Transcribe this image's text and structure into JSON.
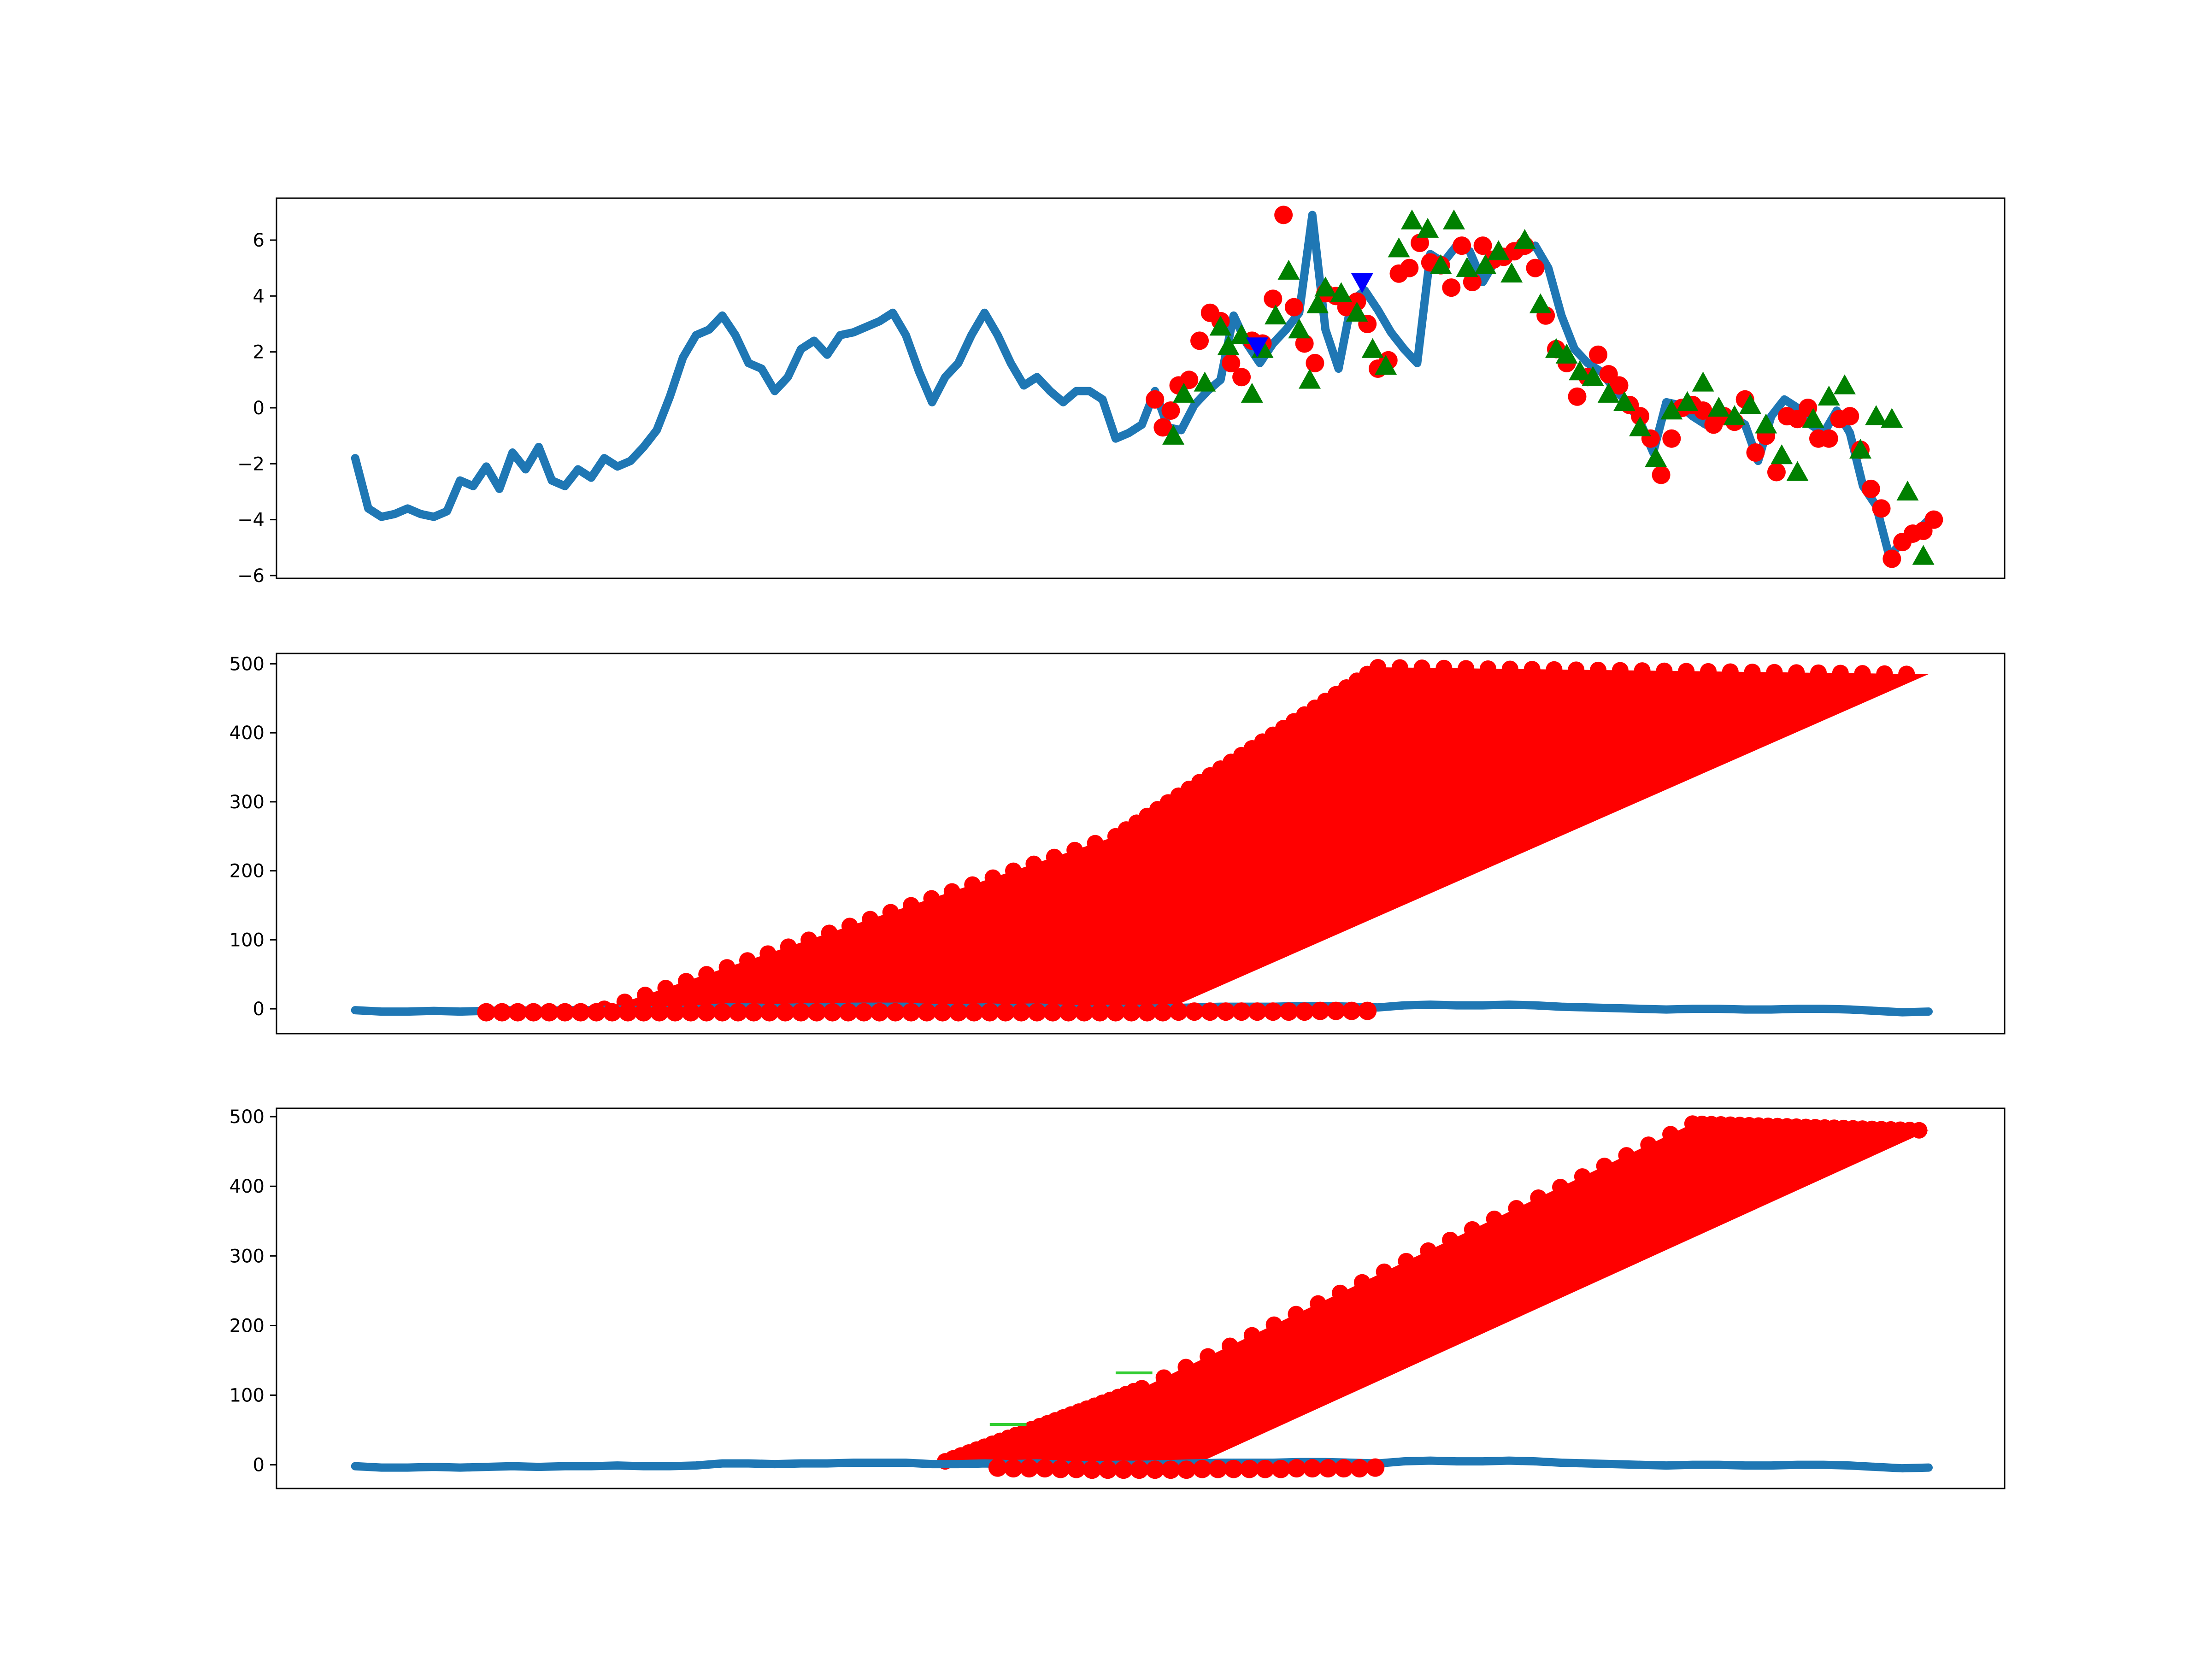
{
  "colors": {
    "price_line": "#1f77b4",
    "marker_red": "#ff0000",
    "marker_green": "#008000",
    "marker_blue": "#0000ff",
    "segment_green": "#32cd32"
  },
  "chart_data": [
    {
      "type": "line",
      "title": "",
      "xlabel": "",
      "ylabel": "",
      "x_ticks_visible": false,
      "grid": false,
      "xlim": [
        -30,
        629
      ],
      "ylim": [
        -6.1,
        7.5
      ],
      "yticks": [
        -6,
        -4,
        -2,
        0,
        2,
        4,
        6
      ],
      "ytick_labels": [
        "−6",
        "−4",
        "−2",
        "0",
        "2",
        "4",
        "6"
      ],
      "series": [
        {
          "kind": "line",
          "color": "#1f77b4",
          "x": [
            0,
            5,
            10,
            15,
            20,
            25,
            30,
            35,
            40,
            45,
            50,
            55,
            60,
            65,
            70,
            75,
            80,
            85,
            90,
            95,
            100,
            105,
            110,
            115,
            120,
            125,
            130,
            135,
            140,
            145,
            150,
            155,
            160,
            165,
            170,
            175,
            180,
            185,
            190,
            195,
            200,
            205,
            210,
            215,
            220,
            225,
            230,
            235,
            240,
            245,
            250,
            255,
            260,
            265,
            270,
            275,
            280,
            285,
            290,
            295,
            300,
            305,
            310,
            315,
            320,
            325,
            330,
            335,
            340,
            345,
            350,
            355,
            360,
            365,
            370,
            375,
            380,
            385,
            390,
            395,
            400,
            405,
            410,
            415,
            420,
            425,
            430,
            435,
            440,
            445,
            450,
            455,
            460,
            465,
            470,
            475,
            480,
            485,
            490,
            495,
            500,
            505,
            510,
            515,
            520,
            525,
            530,
            535,
            540,
            545,
            550,
            555,
            560,
            565,
            570,
            575,
            580,
            585,
            590,
            595,
            600
          ],
          "y": [
            -1.8,
            -3.6,
            -3.9,
            -3.8,
            -3.6,
            -3.8,
            -3.9,
            -3.7,
            -2.6,
            -2.8,
            -2.1,
            -2.9,
            -1.6,
            -2.2,
            -1.4,
            -2.6,
            -2.8,
            -2.2,
            -2.5,
            -1.8,
            -2.1,
            -1.9,
            -1.4,
            -0.8,
            0.4,
            1.8,
            2.6,
            2.8,
            3.3,
            2.6,
            1.6,
            1.4,
            0.6,
            1.1,
            2.1,
            2.4,
            1.9,
            2.6,
            2.7,
            2.9,
            3.1,
            3.4,
            2.6,
            1.3,
            0.2,
            1.1,
            1.6,
            2.6,
            3.4,
            2.6,
            1.6,
            0.8,
            1.1,
            0.6,
            0.2,
            0.6,
            0.6,
            0.3,
            -1.1,
            -0.9,
            -0.6,
            0.6,
            -0.7,
            -0.8,
            0.1,
            0.6,
            1.0,
            3.3,
            2.3,
            1.6,
            2.3,
            2.8,
            3.4,
            6.9,
            2.8,
            1.4,
            3.8,
            4.2,
            3.5,
            2.7,
            2.1,
            1.6,
            5.5,
            5.2,
            5.8,
            5.6,
            4.5,
            5.3,
            5.4,
            5.6,
            5.8,
            5.0,
            3.3,
            2.1,
            1.6,
            1.3,
            0.7,
            0.2,
            -0.5,
            -1.6,
            0.2,
            0.1,
            -0.3,
            -0.6,
            -0.2,
            -0.3,
            -0.6,
            -1.9,
            -0.3,
            0.3,
            0.0,
            -0.6,
            -0.9,
            -0.1,
            -0.9,
            -2.8,
            -3.5,
            -5.3,
            -4.8,
            -4.5,
            -4.0
          ]
        },
        {
          "kind": "markers",
          "marker": "circle",
          "color": "#ff0000",
          "x": [
            305,
            308,
            311,
            314,
            318,
            322,
            326,
            330,
            334,
            338,
            342,
            346,
            350,
            354,
            358,
            362,
            366,
            370,
            374,
            378,
            382,
            386,
            390,
            394,
            398,
            402,
            406,
            410,
            414,
            418,
            422,
            426,
            430,
            434,
            438,
            442,
            446,
            450,
            454,
            458,
            462,
            466,
            470,
            474,
            478,
            482,
            486,
            490,
            494,
            498,
            502,
            506,
            510,
            514,
            518,
            522,
            526,
            530,
            534,
            538,
            542,
            546,
            550,
            554,
            558,
            562,
            566,
            570,
            574,
            578,
            582,
            586,
            590,
            594,
            598,
            602
          ],
          "y": [
            0.3,
            -0.7,
            -0.1,
            0.8,
            1.0,
            2.4,
            3.4,
            3.1,
            1.6,
            1.1,
            2.4,
            2.3,
            3.9,
            6.9,
            3.6,
            2.3,
            1.6,
            4.1,
            4.0,
            3.6,
            3.8,
            3.0,
            1.4,
            1.7,
            4.8,
            5.0,
            5.9,
            5.2,
            5.1,
            4.3,
            5.8,
            4.5,
            5.8,
            5.3,
            5.4,
            5.6,
            5.8,
            5.0,
            3.3,
            2.1,
            1.6,
            0.4,
            1.1,
            1.9,
            1.2,
            0.8,
            0.1,
            -0.3,
            -1.1,
            -2.4,
            -1.1,
            0.0,
            0.1,
            -0.1,
            -0.6,
            -0.3,
            -0.5,
            0.3,
            -1.6,
            -1.0,
            -2.3,
            -0.3,
            -0.4,
            0.0,
            -1.1,
            -1.1,
            -0.4,
            -0.3,
            -1.5,
            -2.9,
            -3.6,
            -5.4,
            -4.8,
            -4.5,
            -4.4,
            -4.0
          ]
        },
        {
          "kind": "markers",
          "marker": "triangle-up",
          "color": "#008000",
          "x": [
            312,
            316,
            324,
            330,
            333,
            338,
            342,
            346,
            351,
            356,
            360,
            364,
            367,
            370,
            376,
            382,
            388,
            393,
            398,
            403,
            409,
            414,
            419,
            424,
            431,
            436,
            441,
            446,
            452,
            458,
            462,
            467,
            472,
            478,
            484,
            490,
            496,
            502,
            508,
            514,
            520,
            526,
            532,
            538,
            544,
            550,
            556,
            562,
            568,
            574,
            580,
            586,
            592,
            598
          ],
          "y": [
            -1.0,
            0.5,
            0.9,
            2.9,
            2.2,
            2.6,
            0.5,
            2.1,
            3.3,
            4.9,
            2.8,
            1.0,
            3.7,
            4.3,
            4.1,
            3.4,
            2.1,
            1.5,
            5.7,
            6.7,
            6.4,
            5.1,
            6.7,
            5.0,
            5.1,
            5.6,
            4.8,
            6.0,
            3.7,
            2.1,
            1.9,
            1.3,
            1.1,
            0.5,
            0.2,
            -0.7,
            -1.8,
            -0.1,
            0.2,
            0.9,
            0.0,
            -0.3,
            0.1,
            -0.6,
            -1.7,
            -2.3,
            -0.4,
            0.4,
            0.8,
            -1.5,
            -0.3,
            -0.4,
            -3.0,
            -5.3
          ]
        },
        {
          "kind": "markers",
          "marker": "triangle-down",
          "color": "#0000ff",
          "x": [
            344,
            384
          ],
          "y": [
            2.2,
            4.5
          ]
        }
      ]
    },
    {
      "type": "scatter",
      "title": "",
      "xlabel": "",
      "ylabel": "",
      "x_ticks_visible": false,
      "grid": false,
      "xlim": [
        -30,
        629
      ],
      "ylim": [
        -36,
        515
      ],
      "yticks": [
        0,
        100,
        200,
        300,
        400,
        500
      ],
      "ytick_labels": [
        "0",
        "100",
        "200",
        "300",
        "400",
        "500"
      ],
      "series": [
        {
          "kind": "line",
          "color": "#1f77b4",
          "x": [
            0,
            10,
            20,
            30,
            40,
            50,
            60,
            70,
            80,
            90,
            100,
            110,
            120,
            130,
            140,
            150,
            160,
            170,
            180,
            190,
            200,
            210,
            220,
            230,
            240,
            250,
            260,
            270,
            280,
            290,
            300,
            310,
            320,
            330,
            340,
            350,
            360,
            370,
            380,
            390,
            400,
            410,
            420,
            430,
            440,
            450,
            460,
            470,
            480,
            490,
            500,
            510,
            520,
            530,
            540,
            550,
            560,
            570,
            580,
            590,
            600
          ],
          "y": [
            -2,
            -4,
            -4,
            -3,
            -4,
            -3,
            -2,
            -3,
            -2,
            -2,
            -1,
            -2,
            -2,
            -1,
            2,
            2,
            1,
            2,
            2,
            3,
            3,
            3,
            1,
            1,
            2,
            1,
            2,
            0,
            -1,
            0,
            0,
            1,
            2,
            3,
            3,
            3,
            4,
            4,
            3,
            2,
            5,
            6,
            5,
            5,
            6,
            5,
            3,
            2,
            1,
            0,
            -1,
            0,
            0,
            -1,
            -1,
            0,
            0,
            -1,
            -3,
            -5,
            -4
          ]
        },
        {
          "kind": "markers",
          "marker": "circle",
          "color": "#ff0000",
          "x": [
            50,
            56,
            62,
            68,
            74,
            80,
            86,
            92,
            98,
            104,
            110,
            116,
            122,
            128,
            134,
            140,
            146,
            152,
            158,
            164,
            170,
            176,
            182,
            188,
            194,
            200,
            206,
            212,
            218,
            224,
            230,
            236,
            242,
            248,
            254,
            260,
            266,
            272,
            278,
            284,
            290,
            296,
            302,
            308,
            314,
            320,
            326,
            332,
            338,
            344,
            350,
            356,
            362,
            368,
            374,
            380,
            386
          ],
          "y": [
            -5,
            -5,
            -5,
            -5,
            -5,
            -5,
            -5,
            -5,
            -5,
            -5,
            -5,
            -5,
            -5,
            -5,
            -5,
            -5,
            -5,
            -5,
            -5,
            -5,
            -5,
            -5,
            -5,
            -5,
            -5,
            -5,
            -5,
            -5,
            -5,
            -5,
            -5,
            -5,
            -5,
            -5,
            -5,
            -5,
            -5,
            -5,
            -5,
            -5,
            -5,
            -5,
            -5,
            -5,
            -4,
            -4,
            -4,
            -4,
            -4,
            -4,
            -4,
            -4,
            -4,
            -3,
            -3,
            -3,
            -3
          ]
        },
        {
          "kind": "filled-band",
          "color": "#ff0000",
          "description": "dense red circle markers",
          "upper_x": [
            95,
            290,
            390,
            600
          ],
          "upper_y": [
            0,
            250,
            495,
            485
          ],
          "lower_x": [
            95,
            310,
            600
          ],
          "lower_y": [
            0,
            0,
            485
          ]
        }
      ]
    },
    {
      "type": "scatter",
      "title": "",
      "xlabel": "",
      "ylabel": "",
      "x_ticks_visible": false,
      "grid": false,
      "xlim": [
        -30,
        629
      ],
      "ylim": [
        -34,
        512
      ],
      "yticks": [
        0,
        100,
        200,
        300,
        400,
        500
      ],
      "ytick_labels": [
        "0",
        "100",
        "200",
        "300",
        "400",
        "500"
      ],
      "series": [
        {
          "kind": "line",
          "color": "#1f77b4",
          "x": [
            0,
            10,
            20,
            30,
            40,
            50,
            60,
            70,
            80,
            90,
            100,
            110,
            120,
            130,
            140,
            150,
            160,
            170,
            180,
            190,
            200,
            210,
            220,
            230,
            240,
            250,
            260,
            270,
            280,
            290,
            300,
            310,
            320,
            330,
            340,
            350,
            360,
            370,
            380,
            390,
            400,
            410,
            420,
            430,
            440,
            450,
            460,
            470,
            480,
            490,
            500,
            510,
            520,
            530,
            540,
            550,
            560,
            570,
            580,
            590,
            600
          ],
          "y": [
            -2,
            -4,
            -4,
            -3,
            -4,
            -3,
            -2,
            -3,
            -2,
            -2,
            -1,
            -2,
            -2,
            -1,
            2,
            2,
            1,
            2,
            2,
            3,
            3,
            3,
            1,
            1,
            2,
            1,
            2,
            0,
            -1,
            0,
            0,
            1,
            2,
            3,
            3,
            3,
            4,
            4,
            3,
            2,
            5,
            6,
            5,
            5,
            6,
            5,
            3,
            2,
            1,
            0,
            -1,
            0,
            0,
            -1,
            -1,
            0,
            0,
            -1,
            -3,
            -5,
            -4
          ]
        },
        {
          "kind": "markers",
          "marker": "circle",
          "color": "#ff0000",
          "x": [
            245,
            251,
            257,
            263,
            269,
            275,
            281,
            287,
            293,
            299,
            305,
            311,
            317,
            323,
            329,
            335,
            341,
            347,
            353,
            359,
            365,
            371,
            377,
            383,
            389
          ],
          "y": [
            -4,
            -5,
            -5,
            -5,
            -6,
            -6,
            -7,
            -7,
            -7,
            -7,
            -7,
            -7,
            -7,
            -6,
            -6,
            -6,
            -6,
            -6,
            -6,
            -5,
            -5,
            -5,
            -5,
            -5,
            -4
          ]
        },
        {
          "kind": "filled-band",
          "color": "#ff0000",
          "description": "dense red circle markers",
          "upper_x": [
            225,
            300,
            510,
            600
          ],
          "upper_y": [
            5,
            110,
            490,
            480
          ],
          "lower_x": [
            225,
            320,
            600
          ],
          "lower_y": [
            5,
            0,
            480
          ]
        },
        {
          "kind": "segments",
          "color": "#32cd32",
          "segments": [
            {
              "x": [
                242,
                256
              ],
              "y": [
                58,
                58
              ]
            },
            {
              "x": [
                290,
                304
              ],
              "y": [
                132,
                132
              ]
            }
          ]
        }
      ]
    }
  ]
}
